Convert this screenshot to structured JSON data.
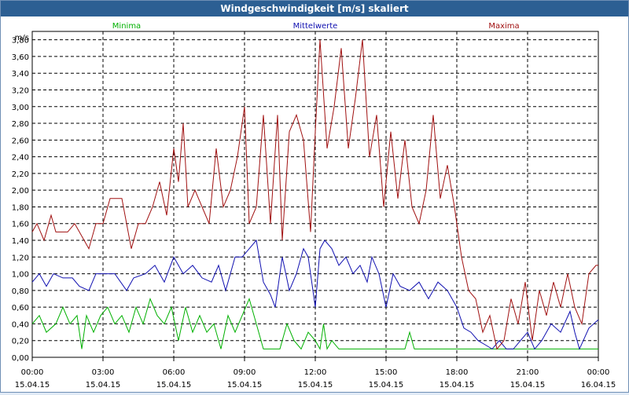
{
  "window": {
    "title": "Windgeschwindigkeit [m/s] skaliert"
  },
  "chart_data": {
    "type": "line",
    "ylabel": "m/s",
    "ylim": [
      0,
      3.9
    ],
    "y_ticks": [
      "0,00",
      "0,20",
      "0,40",
      "0,60",
      "0,80",
      "1,00",
      "1,20",
      "1,40",
      "1,60",
      "1,80",
      "2,00",
      "2,20",
      "2,40",
      "2,60",
      "2,80",
      "3,00",
      "3,20",
      "3,40",
      "3,60",
      "3,80"
    ],
    "xlim": [
      0,
      24
    ],
    "x_ticks": [
      {
        "time": "00:00",
        "date": "15.04.15"
      },
      {
        "time": "03:00",
        "date": "15.04.15"
      },
      {
        "time": "06:00",
        "date": "15.04.15"
      },
      {
        "time": "09:00",
        "date": "15.04.15"
      },
      {
        "time": "12:00",
        "date": "15.04.15"
      },
      {
        "time": "15:00",
        "date": "15.04.15"
      },
      {
        "time": "18:00",
        "date": "15.04.15"
      },
      {
        "time": "21:00",
        "date": "15.04.15"
      },
      {
        "time": "00:00",
        "date": "16.04.15"
      }
    ],
    "grid": true,
    "legend_position": "top",
    "series": [
      {
        "name": "Minima",
        "color": "#00b000",
        "points": [
          [
            0.0,
            0.4
          ],
          [
            0.3,
            0.5
          ],
          [
            0.6,
            0.3
          ],
          [
            1.0,
            0.4
          ],
          [
            1.3,
            0.6
          ],
          [
            1.6,
            0.4
          ],
          [
            1.9,
            0.5
          ],
          [
            2.1,
            0.1
          ],
          [
            2.3,
            0.5
          ],
          [
            2.6,
            0.3
          ],
          [
            2.9,
            0.5
          ],
          [
            3.2,
            0.6
          ],
          [
            3.5,
            0.4
          ],
          [
            3.8,
            0.5
          ],
          [
            4.1,
            0.3
          ],
          [
            4.4,
            0.6
          ],
          [
            4.7,
            0.4
          ],
          [
            5.0,
            0.7
          ],
          [
            5.3,
            0.5
          ],
          [
            5.6,
            0.4
          ],
          [
            5.9,
            0.6
          ],
          [
            6.2,
            0.2
          ],
          [
            6.5,
            0.6
          ],
          [
            6.8,
            0.3
          ],
          [
            7.1,
            0.5
          ],
          [
            7.4,
            0.3
          ],
          [
            7.7,
            0.4
          ],
          [
            8.0,
            0.1
          ],
          [
            8.3,
            0.5
          ],
          [
            8.6,
            0.3
          ],
          [
            8.9,
            0.5
          ],
          [
            9.2,
            0.7
          ],
          [
            9.5,
            0.4
          ],
          [
            9.8,
            0.1
          ],
          [
            10.5,
            0.1
          ],
          [
            10.8,
            0.4
          ],
          [
            11.1,
            0.2
          ],
          [
            11.4,
            0.1
          ],
          [
            11.7,
            0.3
          ],
          [
            12.0,
            0.2
          ],
          [
            12.2,
            0.1
          ],
          [
            12.35,
            0.4
          ],
          [
            12.5,
            0.1
          ],
          [
            12.7,
            0.2
          ],
          [
            13.0,
            0.1
          ],
          [
            15.8,
            0.1
          ],
          [
            16.0,
            0.3
          ],
          [
            16.2,
            0.1
          ],
          [
            24.0,
            0.1
          ]
        ]
      },
      {
        "name": "Mittelwerte",
        "color": "#1010b0",
        "points": [
          [
            0.0,
            0.9
          ],
          [
            0.3,
            1.0
          ],
          [
            0.6,
            0.85
          ],
          [
            0.9,
            1.0
          ],
          [
            1.3,
            0.95
          ],
          [
            1.7,
            0.95
          ],
          [
            2.0,
            0.85
          ],
          [
            2.4,
            0.8
          ],
          [
            2.7,
            1.0
          ],
          [
            3.0,
            1.0
          ],
          [
            3.5,
            1.0
          ],
          [
            4.0,
            0.8
          ],
          [
            4.3,
            0.95
          ],
          [
            4.8,
            1.0
          ],
          [
            5.2,
            1.1
          ],
          [
            5.6,
            0.9
          ],
          [
            6.0,
            1.2
          ],
          [
            6.4,
            1.0
          ],
          [
            6.8,
            1.1
          ],
          [
            7.2,
            0.95
          ],
          [
            7.6,
            0.9
          ],
          [
            7.9,
            1.1
          ],
          [
            8.2,
            0.8
          ],
          [
            8.6,
            1.2
          ],
          [
            8.9,
            1.2
          ],
          [
            9.2,
            1.3
          ],
          [
            9.5,
            1.4
          ],
          [
            9.8,
            0.9
          ],
          [
            10.1,
            0.75
          ],
          [
            10.3,
            0.6
          ],
          [
            10.6,
            1.2
          ],
          [
            10.9,
            0.8
          ],
          [
            11.2,
            1.0
          ],
          [
            11.5,
            1.3
          ],
          [
            11.7,
            1.2
          ],
          [
            12.0,
            0.6
          ],
          [
            12.2,
            1.3
          ],
          [
            12.4,
            1.4
          ],
          [
            12.7,
            1.3
          ],
          [
            13.0,
            1.1
          ],
          [
            13.3,
            1.2
          ],
          [
            13.6,
            1.0
          ],
          [
            13.9,
            1.1
          ],
          [
            14.2,
            0.9
          ],
          [
            14.4,
            1.2
          ],
          [
            14.7,
            1.0
          ],
          [
            15.0,
            0.6
          ],
          [
            15.3,
            1.0
          ],
          [
            15.6,
            0.85
          ],
          [
            16.0,
            0.8
          ],
          [
            16.4,
            0.9
          ],
          [
            16.8,
            0.7
          ],
          [
            17.2,
            0.9
          ],
          [
            17.6,
            0.8
          ],
          [
            18.0,
            0.6
          ],
          [
            18.3,
            0.35
          ],
          [
            18.6,
            0.3
          ],
          [
            18.9,
            0.2
          ],
          [
            19.2,
            0.15
          ],
          [
            19.5,
            0.1
          ],
          [
            19.8,
            0.2
          ],
          [
            20.1,
            0.1
          ],
          [
            20.4,
            0.1
          ],
          [
            20.7,
            0.2
          ],
          [
            21.0,
            0.3
          ],
          [
            21.3,
            0.1
          ],
          [
            21.6,
            0.2
          ],
          [
            22.0,
            0.4
          ],
          [
            22.4,
            0.3
          ],
          [
            22.8,
            0.55
          ],
          [
            23.0,
            0.3
          ],
          [
            23.2,
            0.1
          ],
          [
            23.6,
            0.35
          ],
          [
            24.0,
            0.45
          ]
        ]
      },
      {
        "name": "Maxima",
        "color": "#a01010",
        "points": [
          [
            0.0,
            1.5
          ],
          [
            0.2,
            1.6
          ],
          [
            0.5,
            1.4
          ],
          [
            0.8,
            1.7
          ],
          [
            1.0,
            1.5
          ],
          [
            1.5,
            1.5
          ],
          [
            1.8,
            1.6
          ],
          [
            2.2,
            1.4
          ],
          [
            2.4,
            1.3
          ],
          [
            2.7,
            1.6
          ],
          [
            3.0,
            1.6
          ],
          [
            3.3,
            1.9
          ],
          [
            3.8,
            1.9
          ],
          [
            4.2,
            1.3
          ],
          [
            4.5,
            1.6
          ],
          [
            4.8,
            1.6
          ],
          [
            5.1,
            1.8
          ],
          [
            5.4,
            2.1
          ],
          [
            5.7,
            1.7
          ],
          [
            6.0,
            2.5
          ],
          [
            6.2,
            2.1
          ],
          [
            6.4,
            2.8
          ],
          [
            6.6,
            1.8
          ],
          [
            6.9,
            2.0
          ],
          [
            7.2,
            1.8
          ],
          [
            7.5,
            1.6
          ],
          [
            7.8,
            2.5
          ],
          [
            8.1,
            1.8
          ],
          [
            8.4,
            2.0
          ],
          [
            8.7,
            2.4
          ],
          [
            9.0,
            3.0
          ],
          [
            9.2,
            1.6
          ],
          [
            9.5,
            1.8
          ],
          [
            9.8,
            2.9
          ],
          [
            10.1,
            1.6
          ],
          [
            10.4,
            2.9
          ],
          [
            10.6,
            1.4
          ],
          [
            10.9,
            2.7
          ],
          [
            11.2,
            2.9
          ],
          [
            11.5,
            2.6
          ],
          [
            11.8,
            1.5
          ],
          [
            12.0,
            2.7
          ],
          [
            12.2,
            3.8
          ],
          [
            12.5,
            2.5
          ],
          [
            12.8,
            3.0
          ],
          [
            13.1,
            3.7
          ],
          [
            13.4,
            2.5
          ],
          [
            13.7,
            3.1
          ],
          [
            14.0,
            3.8
          ],
          [
            14.3,
            2.4
          ],
          [
            14.6,
            2.9
          ],
          [
            14.9,
            1.8
          ],
          [
            15.2,
            2.7
          ],
          [
            15.5,
            1.9
          ],
          [
            15.8,
            2.6
          ],
          [
            16.1,
            1.8
          ],
          [
            16.4,
            1.6
          ],
          [
            16.7,
            2.0
          ],
          [
            17.0,
            2.9
          ],
          [
            17.3,
            1.9
          ],
          [
            17.6,
            2.3
          ],
          [
            17.9,
            1.8
          ],
          [
            18.2,
            1.2
          ],
          [
            18.5,
            0.8
          ],
          [
            18.8,
            0.7
          ],
          [
            19.1,
            0.3
          ],
          [
            19.4,
            0.5
          ],
          [
            19.7,
            0.1
          ],
          [
            20.0,
            0.2
          ],
          [
            20.3,
            0.7
          ],
          [
            20.6,
            0.4
          ],
          [
            20.9,
            0.9
          ],
          [
            21.2,
            0.2
          ],
          [
            21.5,
            0.8
          ],
          [
            21.8,
            0.5
          ],
          [
            22.1,
            0.9
          ],
          [
            22.4,
            0.6
          ],
          [
            22.7,
            1.0
          ],
          [
            23.0,
            0.6
          ],
          [
            23.3,
            0.4
          ],
          [
            23.6,
            1.0
          ],
          [
            23.9,
            1.1
          ],
          [
            24.0,
            1.1
          ]
        ]
      }
    ]
  }
}
